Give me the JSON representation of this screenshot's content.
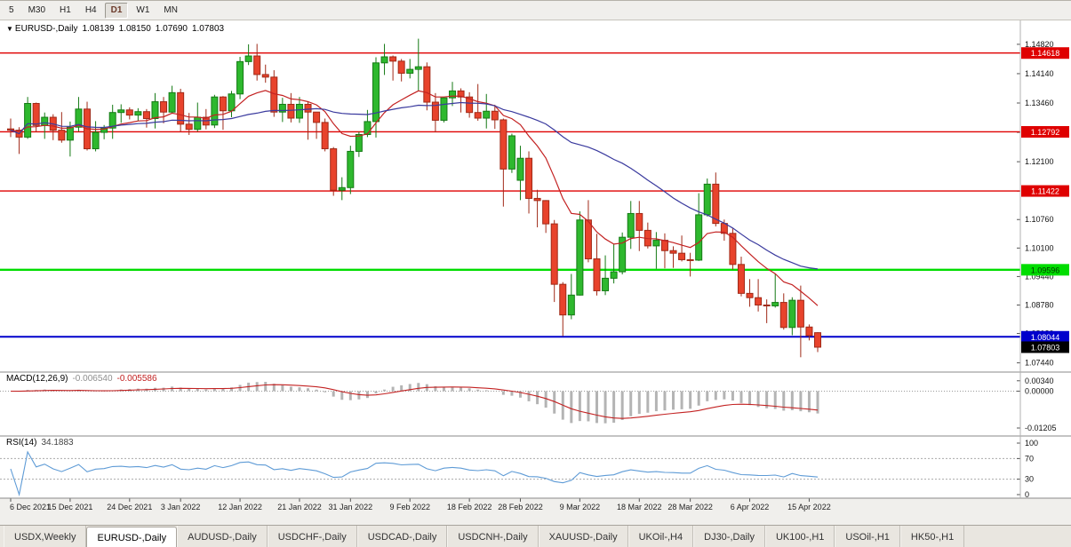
{
  "toolbar": {
    "timeframes": [
      {
        "label": "5",
        "active": false
      },
      {
        "label": "M30",
        "active": false
      },
      {
        "label": "H1",
        "active": false
      },
      {
        "label": "H4",
        "active": false
      },
      {
        "label": "D1",
        "active": true
      },
      {
        "label": "W1",
        "active": false
      },
      {
        "label": "MN",
        "active": false
      }
    ]
  },
  "headers": {
    "symbol": {
      "arrow": "▼",
      "title": "EURUSD-,Daily",
      "open": "1.08139",
      "high": "1.08150",
      "low": "1.07690",
      "close": "1.07803"
    },
    "macd": {
      "label": "MACD(12,26,9)",
      "value1": "-0.006540",
      "value2": "-0.005586"
    },
    "rsi": {
      "label": "RSI(14)",
      "value": "34.1883"
    }
  },
  "chart_data": {
    "type": "candlestick",
    "symbol": "EURUSD-,Daily",
    "ylim": [
      1.0735,
      1.1525
    ],
    "y_ticks": [
      "1.14820",
      "1.14140",
      "1.13460",
      "1.12780",
      "1.12100",
      "1.11420",
      "1.10760",
      "1.10100",
      "1.09440",
      "1.08780",
      "1.08120",
      "1.07440"
    ],
    "x_ticks": [
      {
        "label": "6 Dec 2021",
        "i": 0
      },
      {
        "label": "15 Dec 2021",
        "i": 7
      },
      {
        "label": "24 Dec 2021",
        "i": 14
      },
      {
        "label": "3 Jan 2022",
        "i": 20
      },
      {
        "label": "12 Jan 2022",
        "i": 27
      },
      {
        "label": "21 Jan 2022",
        "i": 34
      },
      {
        "label": "31 Jan 2022",
        "i": 40
      },
      {
        "label": "9 Feb 2022",
        "i": 47
      },
      {
        "label": "18 Feb 2022",
        "i": 54
      },
      {
        "label": "28 Feb 2022",
        "i": 60
      },
      {
        "label": "9 Mar 2022",
        "i": 67
      },
      {
        "label": "18 Mar 2022",
        "i": 74
      },
      {
        "label": "28 Mar 2022",
        "i": 80
      },
      {
        "label": "6 Apr 2022",
        "i": 87
      },
      {
        "label": "15 Apr 2022",
        "i": 94
      }
    ],
    "ohlc": [
      [
        1.1286,
        1.131,
        1.1267,
        1.1283
      ],
      [
        1.1283,
        1.129,
        1.1228,
        1.1267
      ],
      [
        1.1267,
        1.136,
        1.1263,
        1.1345
      ],
      [
        1.1345,
        1.1347,
        1.1279,
        1.1294
      ],
      [
        1.1294,
        1.1324,
        1.1263,
        1.1313
      ],
      [
        1.1313,
        1.132,
        1.126,
        1.1283
      ],
      [
        1.1283,
        1.1325,
        1.1254,
        1.126
      ],
      [
        1.126,
        1.1303,
        1.1222,
        1.129
      ],
      [
        1.129,
        1.136,
        1.128,
        1.1332
      ],
      [
        1.1332,
        1.1349,
        1.1236,
        1.124
      ],
      [
        1.124,
        1.1304,
        1.1234,
        1.1278
      ],
      [
        1.1278,
        1.1295,
        1.1262,
        1.1288
      ],
      [
        1.1288,
        1.1342,
        1.1263,
        1.1324
      ],
      [
        1.1324,
        1.1343,
        1.13,
        1.133
      ],
      [
        1.133,
        1.1336,
        1.1308,
        1.1318
      ],
      [
        1.1318,
        1.1334,
        1.1304,
        1.1326
      ],
      [
        1.1326,
        1.1332,
        1.1289,
        1.131
      ],
      [
        1.131,
        1.1369,
        1.1287,
        1.1349
      ],
      [
        1.1349,
        1.136,
        1.1299,
        1.1325
      ],
      [
        1.1325,
        1.1386,
        1.1321,
        1.137
      ],
      [
        1.137,
        1.1379,
        1.1279,
        1.1297
      ],
      [
        1.1297,
        1.1323,
        1.1272,
        1.1285
      ],
      [
        1.1285,
        1.1347,
        1.128,
        1.1313
      ],
      [
        1.1313,
        1.1332,
        1.1285,
        1.1295
      ],
      [
        1.1295,
        1.1365,
        1.1288,
        1.136
      ],
      [
        1.136,
        1.1362,
        1.1284,
        1.1328
      ],
      [
        1.1328,
        1.1374,
        1.1313,
        1.1367
      ],
      [
        1.1367,
        1.1453,
        1.1355,
        1.1442
      ],
      [
        1.1442,
        1.1482,
        1.1434,
        1.1455
      ],
      [
        1.1455,
        1.1483,
        1.1398,
        1.1412
      ],
      [
        1.1412,
        1.1435,
        1.1393,
        1.1406
      ],
      [
        1.1406,
        1.1422,
        1.1314,
        1.1325
      ],
      [
        1.1325,
        1.1358,
        1.1302,
        1.1343
      ],
      [
        1.1343,
        1.1369,
        1.1301,
        1.1311
      ],
      [
        1.1311,
        1.136,
        1.13,
        1.1343
      ],
      [
        1.1343,
        1.1349,
        1.1261,
        1.1325
      ],
      [
        1.1325,
        1.1325,
        1.1263,
        1.1301
      ],
      [
        1.1301,
        1.131,
        1.1234,
        1.124
      ],
      [
        1.124,
        1.1244,
        1.1131,
        1.1144
      ],
      [
        1.1144,
        1.1174,
        1.1121,
        1.115
      ],
      [
        1.115,
        1.1247,
        1.1135,
        1.1234
      ],
      [
        1.1234,
        1.1279,
        1.1221,
        1.1273
      ],
      [
        1.1273,
        1.133,
        1.1267,
        1.1303
      ],
      [
        1.1303,
        1.1452,
        1.1266,
        1.1439
      ],
      [
        1.1439,
        1.1483,
        1.1411,
        1.1453
      ],
      [
        1.1453,
        1.1456,
        1.1398,
        1.1443
      ],
      [
        1.1443,
        1.1448,
        1.1396,
        1.1415
      ],
      [
        1.1415,
        1.1448,
        1.1403,
        1.1424
      ],
      [
        1.1424,
        1.1495,
        1.1375,
        1.143
      ],
      [
        1.143,
        1.144,
        1.1329,
        1.1348
      ],
      [
        1.1348,
        1.1369,
        1.1278,
        1.1306
      ],
      [
        1.1306,
        1.1359,
        1.1301,
        1.1358
      ],
      [
        1.1358,
        1.1395,
        1.1339,
        1.1374
      ],
      [
        1.1374,
        1.138,
        1.1324,
        1.136
      ],
      [
        1.136,
        1.1371,
        1.1312,
        1.1324
      ],
      [
        1.1324,
        1.139,
        1.1305,
        1.1311
      ],
      [
        1.1311,
        1.1367,
        1.1287,
        1.1327
      ],
      [
        1.1327,
        1.1342,
        1.1286,
        1.1307
      ],
      [
        1.1307,
        1.131,
        1.1106,
        1.1193
      ],
      [
        1.1193,
        1.1275,
        1.1184,
        1.127
      ],
      [
        1.1167,
        1.1247,
        1.1121,
        1.1218
      ],
      [
        1.1218,
        1.1234,
        1.109,
        1.1125
      ],
      [
        1.1125,
        1.1145,
        1.1058,
        1.112
      ],
      [
        1.112,
        1.1121,
        1.1045,
        1.1066
      ],
      [
        1.1066,
        1.1075,
        1.0885,
        1.0926
      ],
      [
        1.0926,
        1.0931,
        1.0806,
        1.0855
      ],
      [
        1.0855,
        1.095,
        1.0845,
        1.0901
      ],
      [
        1.0901,
        1.1095,
        1.09,
        1.1075
      ],
      [
        1.1075,
        1.1121,
        1.0977,
        1.0985
      ],
      [
        1.0985,
        1.1043,
        1.09,
        1.0911
      ],
      [
        1.0911,
        1.0993,
        1.0901,
        1.094
      ],
      [
        1.094,
        1.102,
        1.0928,
        1.0955
      ],
      [
        1.0955,
        1.1046,
        1.0949,
        1.1035
      ],
      [
        1.1035,
        1.1119,
        1.1008,
        1.109
      ],
      [
        1.109,
        1.1119,
        1.1003,
        1.1051
      ],
      [
        1.1051,
        1.1069,
        1.1009,
        1.1015
      ],
      [
        1.1015,
        1.1047,
        1.0962,
        1.1028
      ],
      [
        1.1028,
        1.1044,
        1.0963,
        1.1004
      ],
      [
        1.1004,
        1.1014,
        1.0964,
        1.0998
      ],
      [
        1.0998,
        1.1039,
        1.0979,
        1.0983
      ],
      [
        1.0983,
        1.0999,
        1.0944,
        1.0982
      ],
      [
        1.0982,
        1.1137,
        1.098,
        1.1087
      ],
      [
        1.1087,
        1.1171,
        1.1083,
        1.1158
      ],
      [
        1.1158,
        1.1185,
        1.106,
        1.1067
      ],
      [
        1.1067,
        1.1076,
        1.1027,
        1.1044
      ],
      [
        1.1044,
        1.1055,
        1.096,
        1.0972
      ],
      [
        1.0972,
        1.099,
        1.0898,
        1.0905
      ],
      [
        1.0905,
        1.0938,
        1.0874,
        1.0895
      ],
      [
        1.0895,
        1.0938,
        1.0863,
        1.0878
      ],
      [
        1.0878,
        1.0891,
        1.0836,
        1.0876
      ],
      [
        1.0876,
        1.095,
        1.0872,
        1.0884
      ],
      [
        1.0884,
        1.0905,
        1.0821,
        1.0826
      ],
      [
        1.0826,
        1.0896,
        1.0808,
        1.0889
      ],
      [
        1.0889,
        1.0923,
        1.0757,
        1.0827
      ],
      [
        1.0827,
        1.0833,
        1.0796,
        1.0807
      ],
      [
        1.08139,
        1.0815,
        1.0769,
        1.07803
      ]
    ],
    "hlines": [
      {
        "price": 1.14618,
        "label": "1.14618",
        "color": "#df0000",
        "width": 1.4,
        "text_color": "#ffffff"
      },
      {
        "price": 1.12792,
        "label": "1.12792",
        "color": "#df0000",
        "width": 1.4,
        "text_color": "#ffffff"
      },
      {
        "price": 1.11422,
        "label": "1.11422",
        "color": "#df0000",
        "width": 1.4,
        "text_color": "#ffffff"
      },
      {
        "price": 1.09596,
        "label": "1.09596",
        "color": "#00dd00",
        "width": 2.4,
        "text_color": "#003300"
      },
      {
        "price": 1.08044,
        "label": "1.08044",
        "color": "#0000cc",
        "width": 2.0,
        "text_color": "#ffffff"
      }
    ],
    "current_price": {
      "price": 1.07803,
      "label": "1.07803",
      "bg": "#000000",
      "text_color": "#ffffff"
    },
    "moving_averages": [
      {
        "name": "ma-fast",
        "type": "ema",
        "period": 12,
        "color": "#c32222"
      },
      {
        "name": "ma-slow",
        "type": "sma",
        "period": 30,
        "color": "#3a3a9e"
      }
    ],
    "macd": {
      "fast": 12,
      "slow": 26,
      "signal": 9,
      "hist_color": "#b4b4b4",
      "signal_color": "#c32222",
      "range": [
        0.0045,
        -0.0135
      ],
      "axis_labels": [
        {
          "value": 0.0034,
          "label": "0.00340"
        },
        {
          "value": 0,
          "label": "0.00000"
        },
        {
          "value": -0.01205,
          "label": "-0.01205"
        }
      ]
    },
    "rsi": {
      "period": 14,
      "color": "#5e9bd6",
      "levels": [
        70,
        30
      ],
      "axis_labels": [
        {
          "value": 100,
          "label": "100"
        },
        {
          "value": 70,
          "label": "70"
        },
        {
          "value": 30,
          "label": "30"
        },
        {
          "value": 0,
          "label": "0"
        }
      ]
    },
    "colors": {
      "bull": "#2eb82e",
      "bull_stroke": "#157a15",
      "bear": "#e8432c",
      "bear_stroke": "#a02a18",
      "axis_text": "#111111",
      "grid": "#999999",
      "panel_border": "#8a8a8a"
    }
  },
  "tabs": {
    "active_index": 1,
    "items": [
      "USDX,Weekly",
      "EURUSD-,Daily",
      "AUDUSD-,Daily",
      "USDCHF-,Daily",
      "USDCAD-,Daily",
      "USDCNH-,Daily",
      "XAUUSD-,Daily",
      "UKOil-,H4",
      "DJ30-,Daily",
      "UK100-,H1",
      "USOil-,H1",
      "HK50-,H1"
    ]
  }
}
